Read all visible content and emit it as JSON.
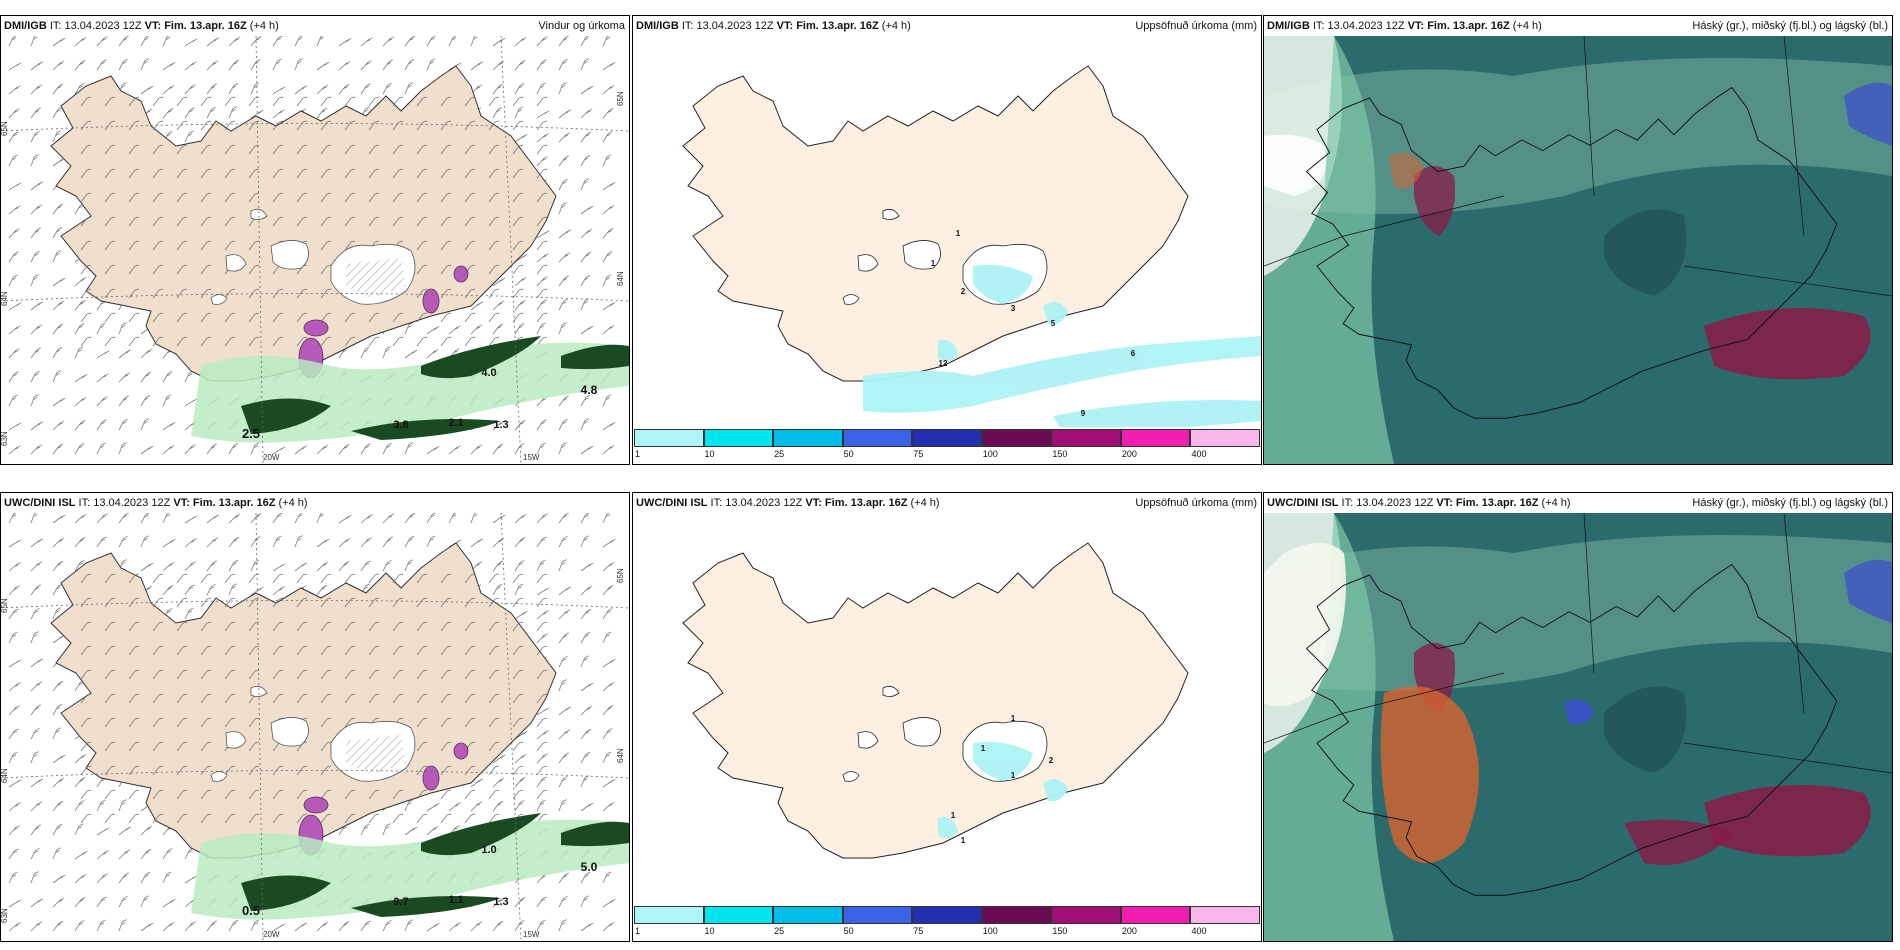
{
  "panels": [
    {
      "id": "p1",
      "type": "wind",
      "header": {
        "org": "DMI/IGB",
        "it": " IT: 13.04.2023 12Z ",
        "vt": "VT: Fim. 13.apr. 16Z",
        "lead": " (+4 h)",
        "right": "Vindur og úrkoma"
      },
      "axis_labels": {
        "lon_left": "20W",
        "lon_right": "15W",
        "lat_top": "65N",
        "lat_mid": "64N",
        "lat_bot": "63N"
      },
      "values": [
        "2.5",
        "3.8",
        "2.1",
        "1.3",
        "4.0",
        "4.8"
      ]
    },
    {
      "id": "p2",
      "type": "precip",
      "header": {
        "org": "DMI/IGB",
        "it": " IT: 13.04.2023 12Z ",
        "vt": "VT: Fim. 13.apr. 16Z",
        "lead": " (+4 h)",
        "right": "Uppsöfnuð úrkoma (mm)"
      },
      "values": [
        "1",
        "1",
        "2",
        "3",
        "5",
        "12",
        "6",
        "9"
      ]
    },
    {
      "id": "p3",
      "type": "cloud",
      "header": {
        "org": "DMI/IGB",
        "it": " IT: 13.04.2023 12Z ",
        "vt": "VT: Fim. 13.apr. 16Z",
        "lead": " (+4 h)",
        "right": "Háský (gr.), miðský (fj.bl.) og lágský (bl.)"
      }
    },
    {
      "id": "p4",
      "type": "wind",
      "header": {
        "org": "UWC/DINI ISL",
        "it": " IT: 13.04.2023 12Z ",
        "vt": "VT: Fim. 13.apr. 16Z",
        "lead": " (+4 h)",
        "right": ""
      },
      "axis_labels": {
        "lon_left": "20W",
        "lon_right": "15W",
        "lat_top": "65N",
        "lat_mid": "64N",
        "lat_bot": "63N"
      },
      "values": [
        "0.5",
        "0.7",
        "1.1",
        "1.3",
        "1.0",
        "5.0"
      ]
    },
    {
      "id": "p5",
      "type": "precip",
      "header": {
        "org": "UWC/DINI ISL",
        "it": " IT: 13.04.2023 12Z ",
        "vt": "VT: Fim. 13.apr. 16Z",
        "lead": " (+4 h)",
        "right": "Uppsöfnuð úrkoma (mm)"
      },
      "values": [
        "1",
        "1",
        "2",
        "1",
        "1",
        "1"
      ]
    },
    {
      "id": "p6",
      "type": "cloud",
      "header": {
        "org": "UWC/DINI ISL",
        "it": " IT: 13.04.2023 12Z ",
        "vt": "VT: Fim. 13.apr. 16Z",
        "lead": " (+4 h)",
        "right": "Háský (gr.), miðský (fj.bl.) og lágský (bl.)"
      }
    }
  ],
  "colorbar": {
    "ticks": [
      "1",
      "10",
      "25",
      "50",
      "75",
      "100",
      "150",
      "200",
      "400"
    ],
    "colors": [
      "#aef5f7",
      "#00e6ee",
      "#00bde8",
      "#3a63e8",
      "#2230b0",
      "#6b0a55",
      "#a00f78",
      "#f21eb0",
      "#f8b6ec"
    ]
  },
  "colors": {
    "land_wind": "#efdfcc",
    "land_precip": "#fdf0e3",
    "sea_cloud": "#2b6b6b",
    "precip_light": "#adf3f4",
    "precip_green_light": "#b8ebc0",
    "precip_green_dark": "#1a4a22",
    "ice": "#ffffff",
    "heavy_magenta": "#b04cb8",
    "high_cloud": "#5f9a90",
    "mid_cloud": "#3b4fd0",
    "low_cloud": "#8a1a48",
    "orange_cloud": "#d9642f"
  }
}
